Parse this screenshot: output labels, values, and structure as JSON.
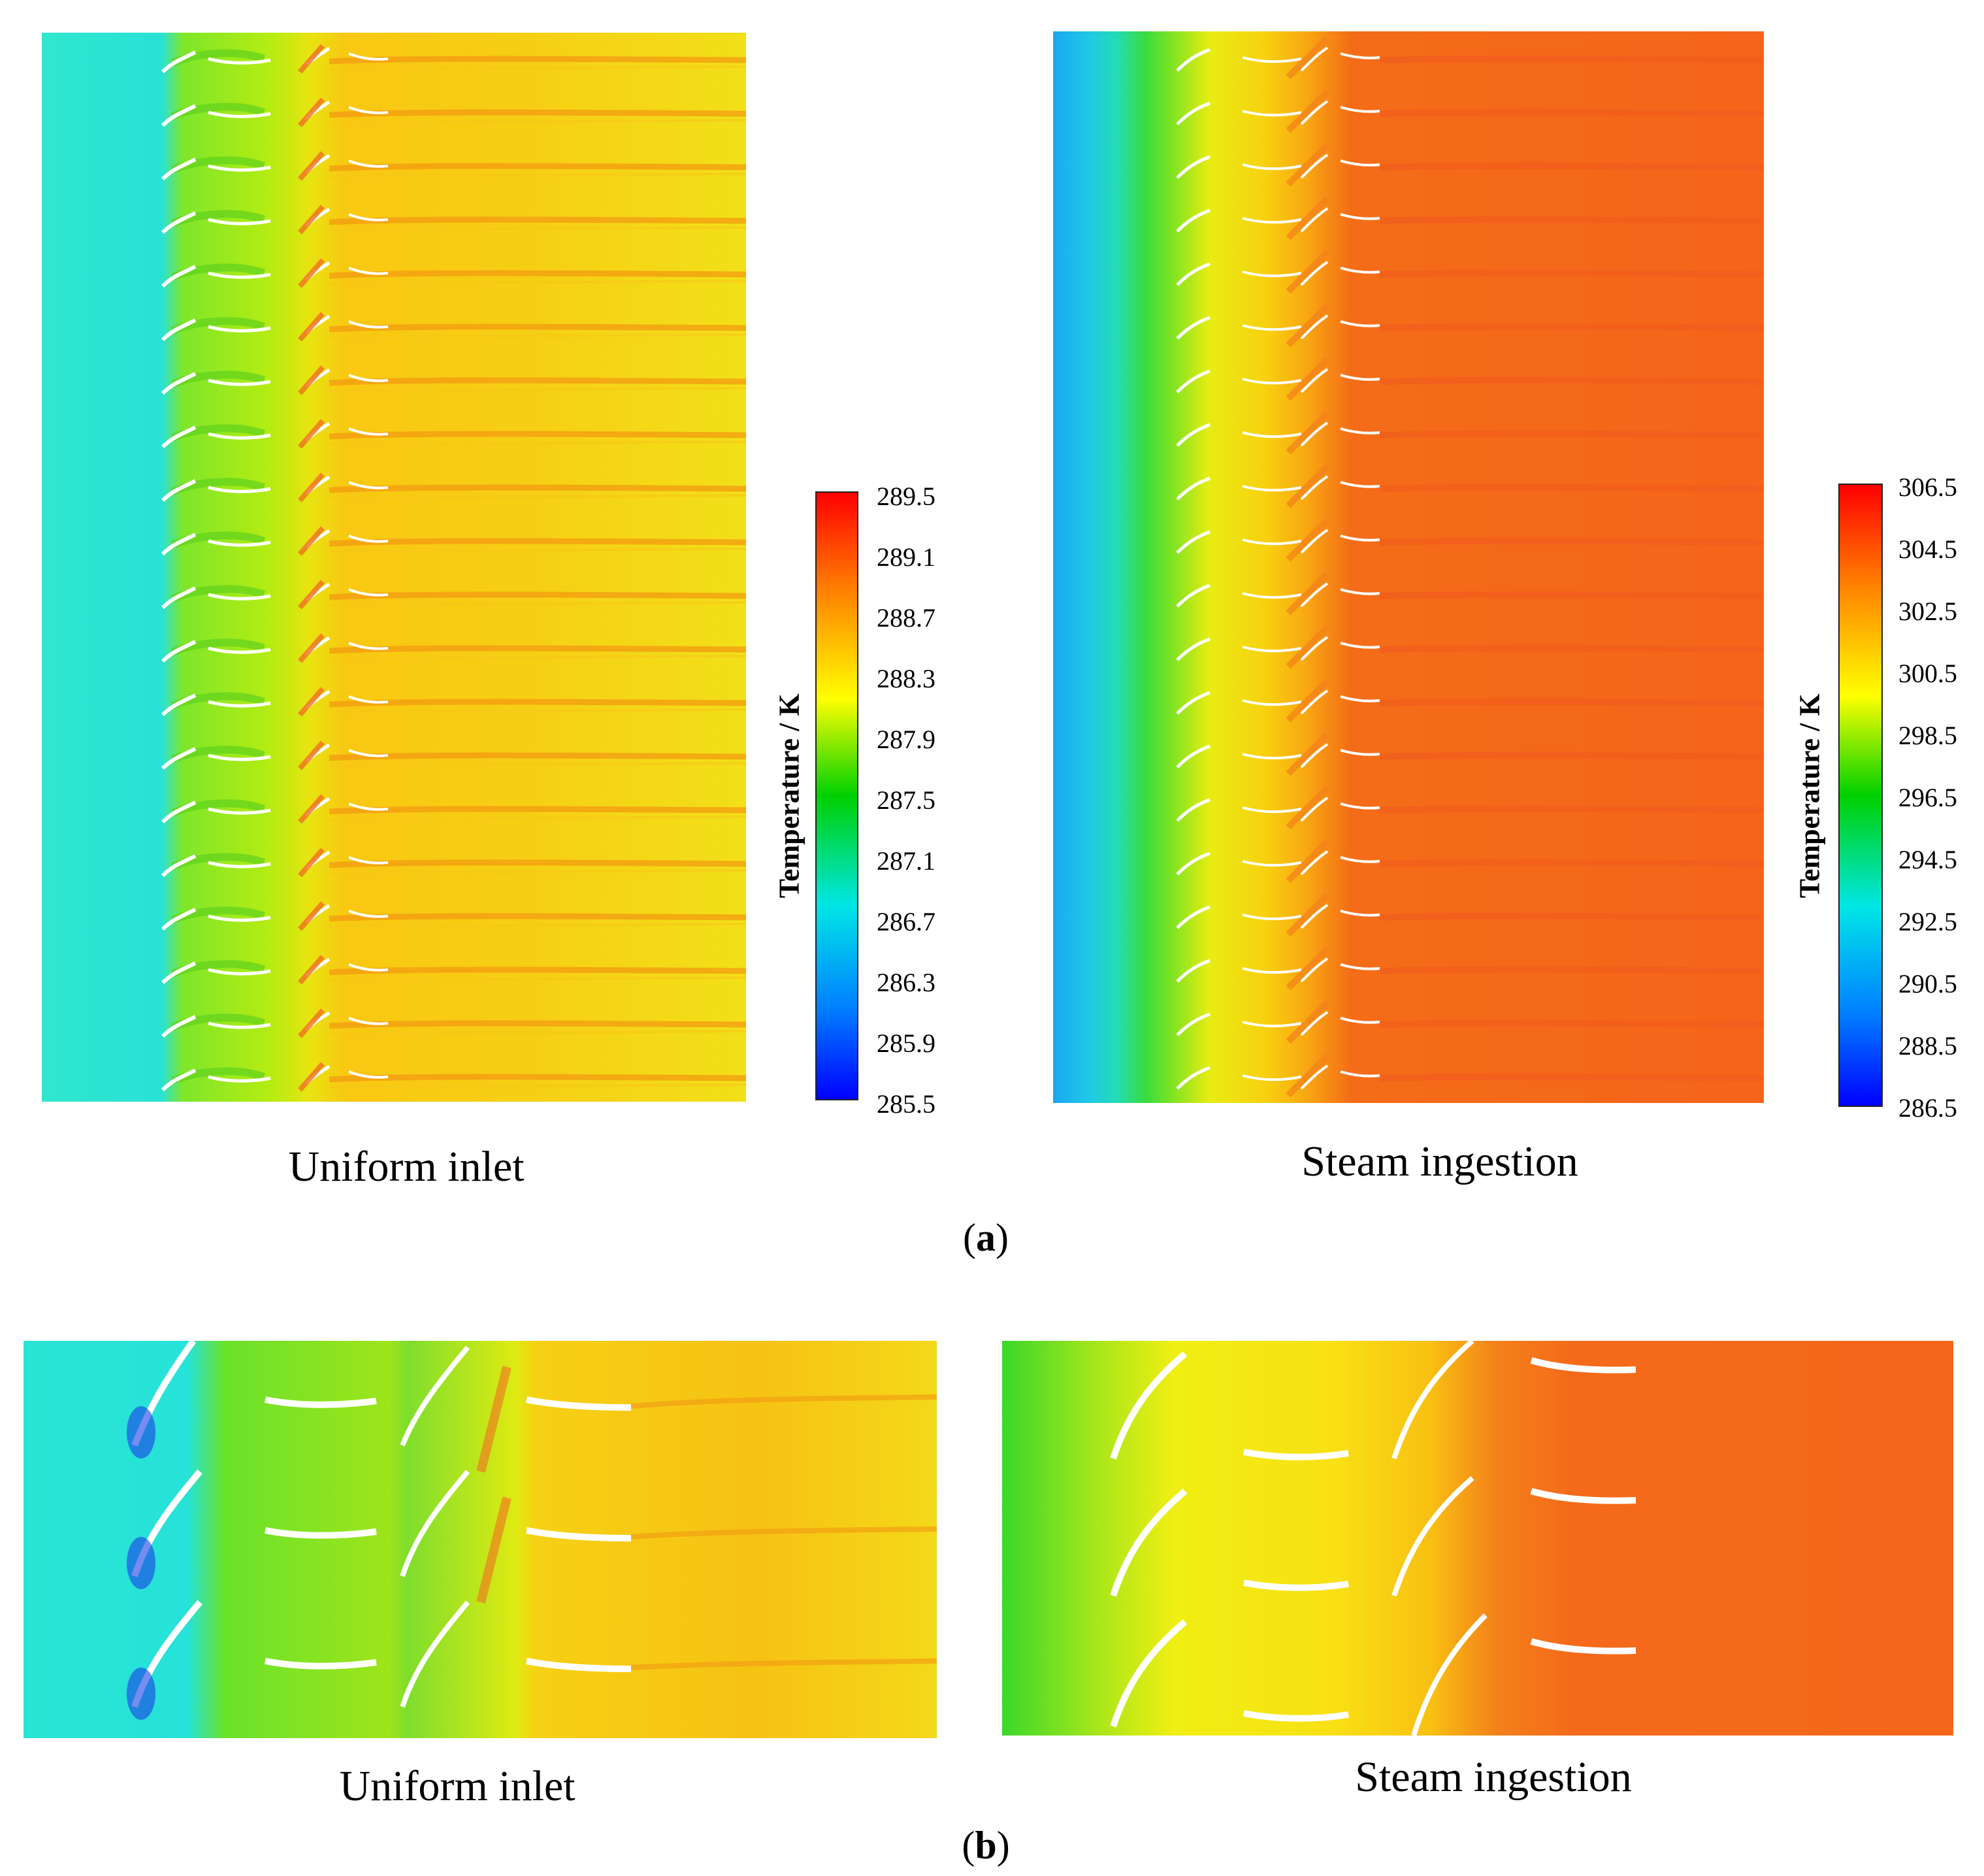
{
  "figure": {
    "row_a": {
      "label_open": "(",
      "label_letter": "a",
      "label_close": ")",
      "left_caption": "Uniform inlet",
      "right_caption": "Steam ingestion",
      "left_colorbar": {
        "title": "Temperature / K",
        "ticks": [
          "289.5",
          "289.1",
          "288.7",
          "288.3",
          "287.9",
          "287.5",
          "287.1",
          "286.7",
          "286.3",
          "285.9",
          "285.5"
        ]
      },
      "right_colorbar": {
        "title": "Temperature / K",
        "ticks": [
          "306.5",
          "304.5",
          "302.5",
          "300.5",
          "298.5",
          "296.5",
          "294.5",
          "292.5",
          "290.5",
          "288.5",
          "286.5"
        ]
      }
    },
    "row_b": {
      "label_open": "(",
      "label_letter": "b",
      "label_close": ")",
      "left_caption": "Uniform inlet",
      "right_caption": "Steam ingestion"
    },
    "colors": {
      "jet": [
        "#0000ff",
        "#0080ff",
        "#00e6e6",
        "#00d000",
        "#ffff00",
        "#ff8000",
        "#ff0000"
      ],
      "cyan_field": "#21e6d6",
      "green_band": "#5ee01e",
      "yellow_orange": "#f5c30a",
      "orange_hot": "#f56a14"
    }
  }
}
